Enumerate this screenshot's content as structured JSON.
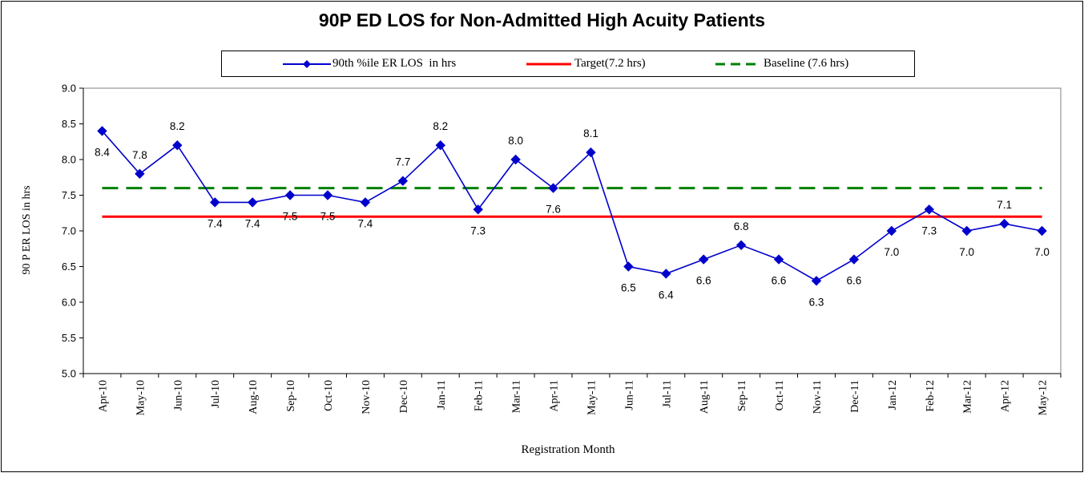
{
  "chart_data": {
    "type": "line",
    "title": "90P ED LOS for Non-Admitted High Acuity Patients",
    "xlabel": "Registration Month",
    "ylabel": "90 P ER LOS in hrs",
    "ylim": [
      5.0,
      9.0
    ],
    "y_ticks": [
      "5.0",
      "5.5",
      "6.0",
      "6.5",
      "7.0",
      "7.5",
      "8.0",
      "8.5",
      "9.0"
    ],
    "grid": false,
    "legend_position": "top",
    "categories": [
      "Apr-10",
      "May-10",
      "Jun-10",
      "Jul-10",
      "Aug-10",
      "Sep-10",
      "Oct-10",
      "Nov-10",
      "Dec-10",
      "Jan-11",
      "Feb-11",
      "Mar-11",
      "Apr-11",
      "May-11",
      "Jun-11",
      "Jul-11",
      "Aug-11",
      "Sep-11",
      "Oct-11",
      "Nov-11",
      "Dec-11",
      "Jan-12",
      "Feb-12",
      "Mar-12",
      "Apr-12",
      "May-12"
    ],
    "series": [
      {
        "name": "90th %ile ER LOS  in hrs",
        "color": "#0000CC",
        "marker": "diamond",
        "values": [
          8.4,
          7.8,
          8.2,
          7.4,
          7.4,
          7.5,
          7.5,
          7.4,
          7.7,
          8.2,
          7.3,
          8.0,
          7.6,
          8.1,
          6.5,
          6.4,
          6.6,
          6.8,
          6.6,
          6.3,
          6.6,
          7.0,
          7.3,
          7.0,
          7.1,
          7.0
        ],
        "labels": [
          "8.4",
          "7.8",
          "8.2",
          "7.4",
          "7.4",
          "7.5",
          "7.5",
          "7.4",
          "7.7",
          "8.2",
          "7.3",
          "8.0",
          "7.6",
          "8.1",
          "6.5",
          "6.4",
          "6.6",
          "6.8",
          "6.6",
          "6.3",
          "6.6",
          "7.0",
          "7.3",
          "7.0",
          "7.1",
          "7.0"
        ],
        "label_placement": [
          "below",
          "above",
          "above",
          "below",
          "below",
          "below",
          "below",
          "below",
          "above",
          "above",
          "below",
          "above",
          "below",
          "above",
          "below",
          "below",
          "below",
          "above",
          "below",
          "below",
          "below",
          "below",
          "below",
          "below",
          "above",
          "below"
        ]
      },
      {
        "name": "Target(7.2 hrs)",
        "color": "#FF0000",
        "style": "solid",
        "constant": 7.2
      },
      {
        "name": "Baseline (7.6 hrs)",
        "color": "#008000",
        "style": "dashed",
        "constant": 7.6
      }
    ]
  }
}
